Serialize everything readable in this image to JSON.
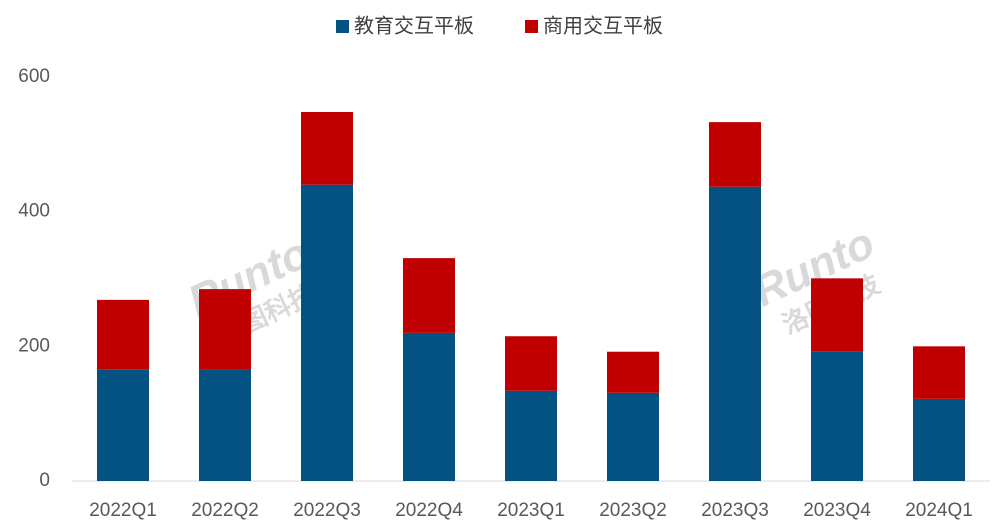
{
  "chart_data": {
    "type": "stacked_bar",
    "categories": [
      "2022Q1",
      "2022Q2",
      "2022Q3",
      "2022Q4",
      "2023Q1",
      "2023Q2",
      "2023Q3",
      "2023Q4",
      "2024Q1"
    ],
    "series": [
      {
        "name": "教育交互平板",
        "color": "#045282",
        "values": [
          166,
          165,
          440,
          220,
          134,
          131,
          437,
          192,
          122
        ]
      },
      {
        "name": "商用交互平板",
        "color": "#c00000",
        "values": [
          103,
          120,
          108,
          111,
          81,
          61,
          96,
          109,
          78
        ]
      }
    ],
    "ylim": [
      0,
      600
    ],
    "yticks": [
      0,
      200,
      400,
      600
    ],
    "grid": false,
    "legend": "top",
    "watermark": [
      "Runto",
      "洛图科技"
    ]
  }
}
